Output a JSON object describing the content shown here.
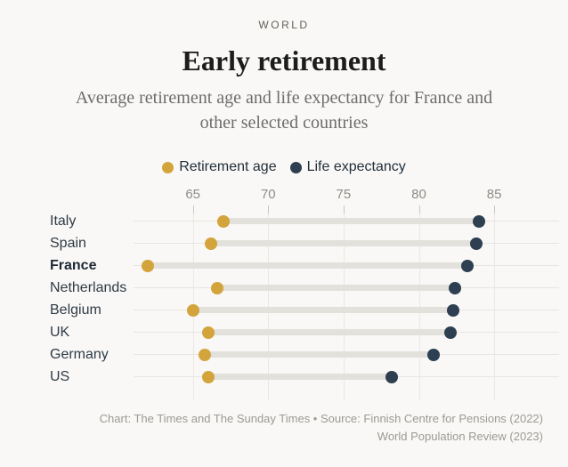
{
  "page": {
    "kicker": "WORLD",
    "title": "Early retirement",
    "subtitle": "Average retirement age and life expectancy for France and other selected countries"
  },
  "legend": {
    "items": [
      {
        "label": "Retirement age",
        "color": "#d2a43b"
      },
      {
        "label": "Life expectancy",
        "color": "#2d3f50"
      }
    ]
  },
  "chart_data": {
    "type": "scatter",
    "subtype": "dumbbell",
    "title": "Early retirement",
    "subtitle": "Average retirement age and life expectancy for France and other selected countries",
    "categories": [
      "Italy",
      "Spain",
      "France",
      "Netherlands",
      "Belgium",
      "UK",
      "Germany",
      "US"
    ],
    "series": [
      {
        "name": "Retirement age",
        "color": "#d2a43b",
        "values": [
          67.0,
          66.2,
          62.0,
          66.6,
          65.0,
          66.0,
          65.8,
          66.0
        ]
      },
      {
        "name": "Life expectancy",
        "color": "#2d3f50",
        "values": [
          84.0,
          83.8,
          83.2,
          82.4,
          82.3,
          82.1,
          81.0,
          78.2
        ]
      }
    ],
    "x_axis": {
      "ticks": [
        65,
        70,
        75,
        80,
        85
      ],
      "range": [
        61.5,
        86
      ]
    },
    "highlight_category": "France",
    "grid": true,
    "legend_position": "top"
  },
  "footer": {
    "line1": "Chart: The Times and The Sunday Times • Source: Finnish Centre for Pensions (2022)",
    "line2": "World Population Review (2023)"
  }
}
